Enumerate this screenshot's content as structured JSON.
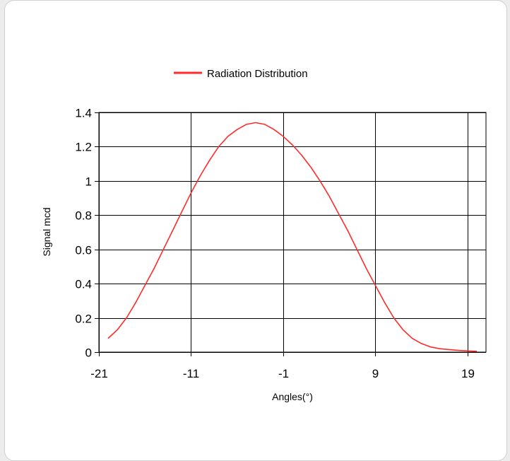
{
  "chart_data": {
    "type": "line",
    "title": "",
    "xlabel": "Angles(°)",
    "ylabel": "Signal mcd",
    "xlim": [
      -21,
      21
    ],
    "ylim": [
      0,
      1.4
    ],
    "xticks": [
      -21,
      -11,
      -1,
      9,
      19
    ],
    "yticks": [
      0,
      0.2,
      0.4,
      0.6,
      0.8,
      1,
      1.2,
      1.4
    ],
    "grid": true,
    "legend": "top-center",
    "colors": {
      "series": "#ff2a2a",
      "grid": "#000000",
      "background": "#ffffff"
    },
    "series": [
      {
        "name": "Radiation Distribution",
        "x": [
          -20,
          -19,
          -18,
          -17,
          -16,
          -15,
          -14,
          -13,
          -12,
          -11,
          -10,
          -9,
          -8,
          -7,
          -6,
          -5,
          -4,
          -3,
          -2,
          -1,
          0,
          1,
          2,
          3,
          4,
          5,
          6,
          7,
          8,
          9,
          10,
          11,
          12,
          13,
          14,
          15,
          16,
          17,
          18,
          19,
          20
        ],
        "values": [
          0.08,
          0.13,
          0.2,
          0.29,
          0.39,
          0.49,
          0.6,
          0.71,
          0.82,
          0.93,
          1.03,
          1.12,
          1.2,
          1.26,
          1.3,
          1.33,
          1.34,
          1.33,
          1.3,
          1.26,
          1.21,
          1.15,
          1.08,
          1.0,
          0.91,
          0.81,
          0.71,
          0.6,
          0.49,
          0.39,
          0.29,
          0.2,
          0.13,
          0.08,
          0.05,
          0.03,
          0.02,
          0.015,
          0.01,
          0.007,
          0.005
        ]
      }
    ]
  }
}
